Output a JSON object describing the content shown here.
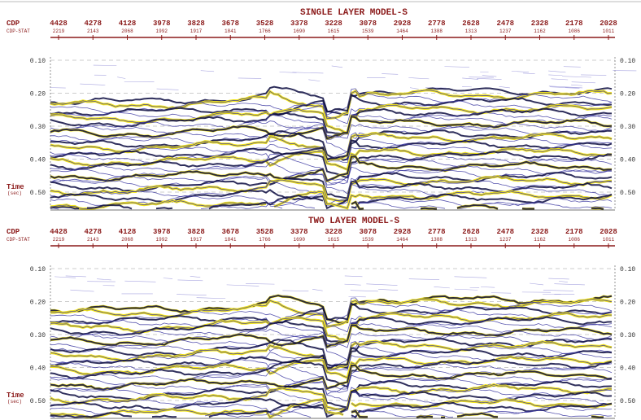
{
  "panels": [
    {
      "title": "SINGLE LAYER MODEL-S",
      "cdp_label": "CDP",
      "cdp_stat_label": "CDP-STAT",
      "cdp": [
        "4428",
        "4278",
        "4128",
        "3978",
        "3828",
        "3678",
        "3528",
        "3378",
        "3228",
        "3078",
        "2928",
        "2778",
        "2628",
        "2478",
        "2328",
        "2178",
        "2028"
      ],
      "cdp_stat": [
        "2219",
        "2143",
        "2068",
        "1992",
        "1917",
        "1841",
        "1766",
        "1690",
        "1615",
        "1539",
        "1464",
        "1388",
        "1313",
        "1237",
        "1162",
        "1086",
        "1011"
      ],
      "time_ticks": [
        "0.10",
        "0.20",
        "0.30",
        "0.40",
        "0.50"
      ],
      "time_label": "Time",
      "time_unit": "(sec)"
    },
    {
      "title": "TWO LAYER MODEL-S",
      "cdp_label": "CDP",
      "cdp_stat_label": "CDP-STAT",
      "cdp": [
        "4428",
        "4278",
        "4128",
        "3978",
        "3828",
        "3678",
        "3528",
        "3378",
        "3228",
        "3078",
        "2928",
        "2778",
        "2628",
        "2478",
        "2328",
        "2178",
        "2028"
      ],
      "cdp_stat": [
        "2219",
        "2143",
        "2068",
        "1992",
        "1917",
        "1841",
        "1766",
        "1690",
        "1615",
        "1539",
        "1464",
        "1388",
        "1313",
        "1237",
        "1162",
        "1086",
        "1011"
      ],
      "time_ticks": [
        "0.10",
        "0.20",
        "0.30",
        "0.40",
        "0.50"
      ],
      "time_label": "Time",
      "time_unit": "(sec)"
    }
  ]
}
